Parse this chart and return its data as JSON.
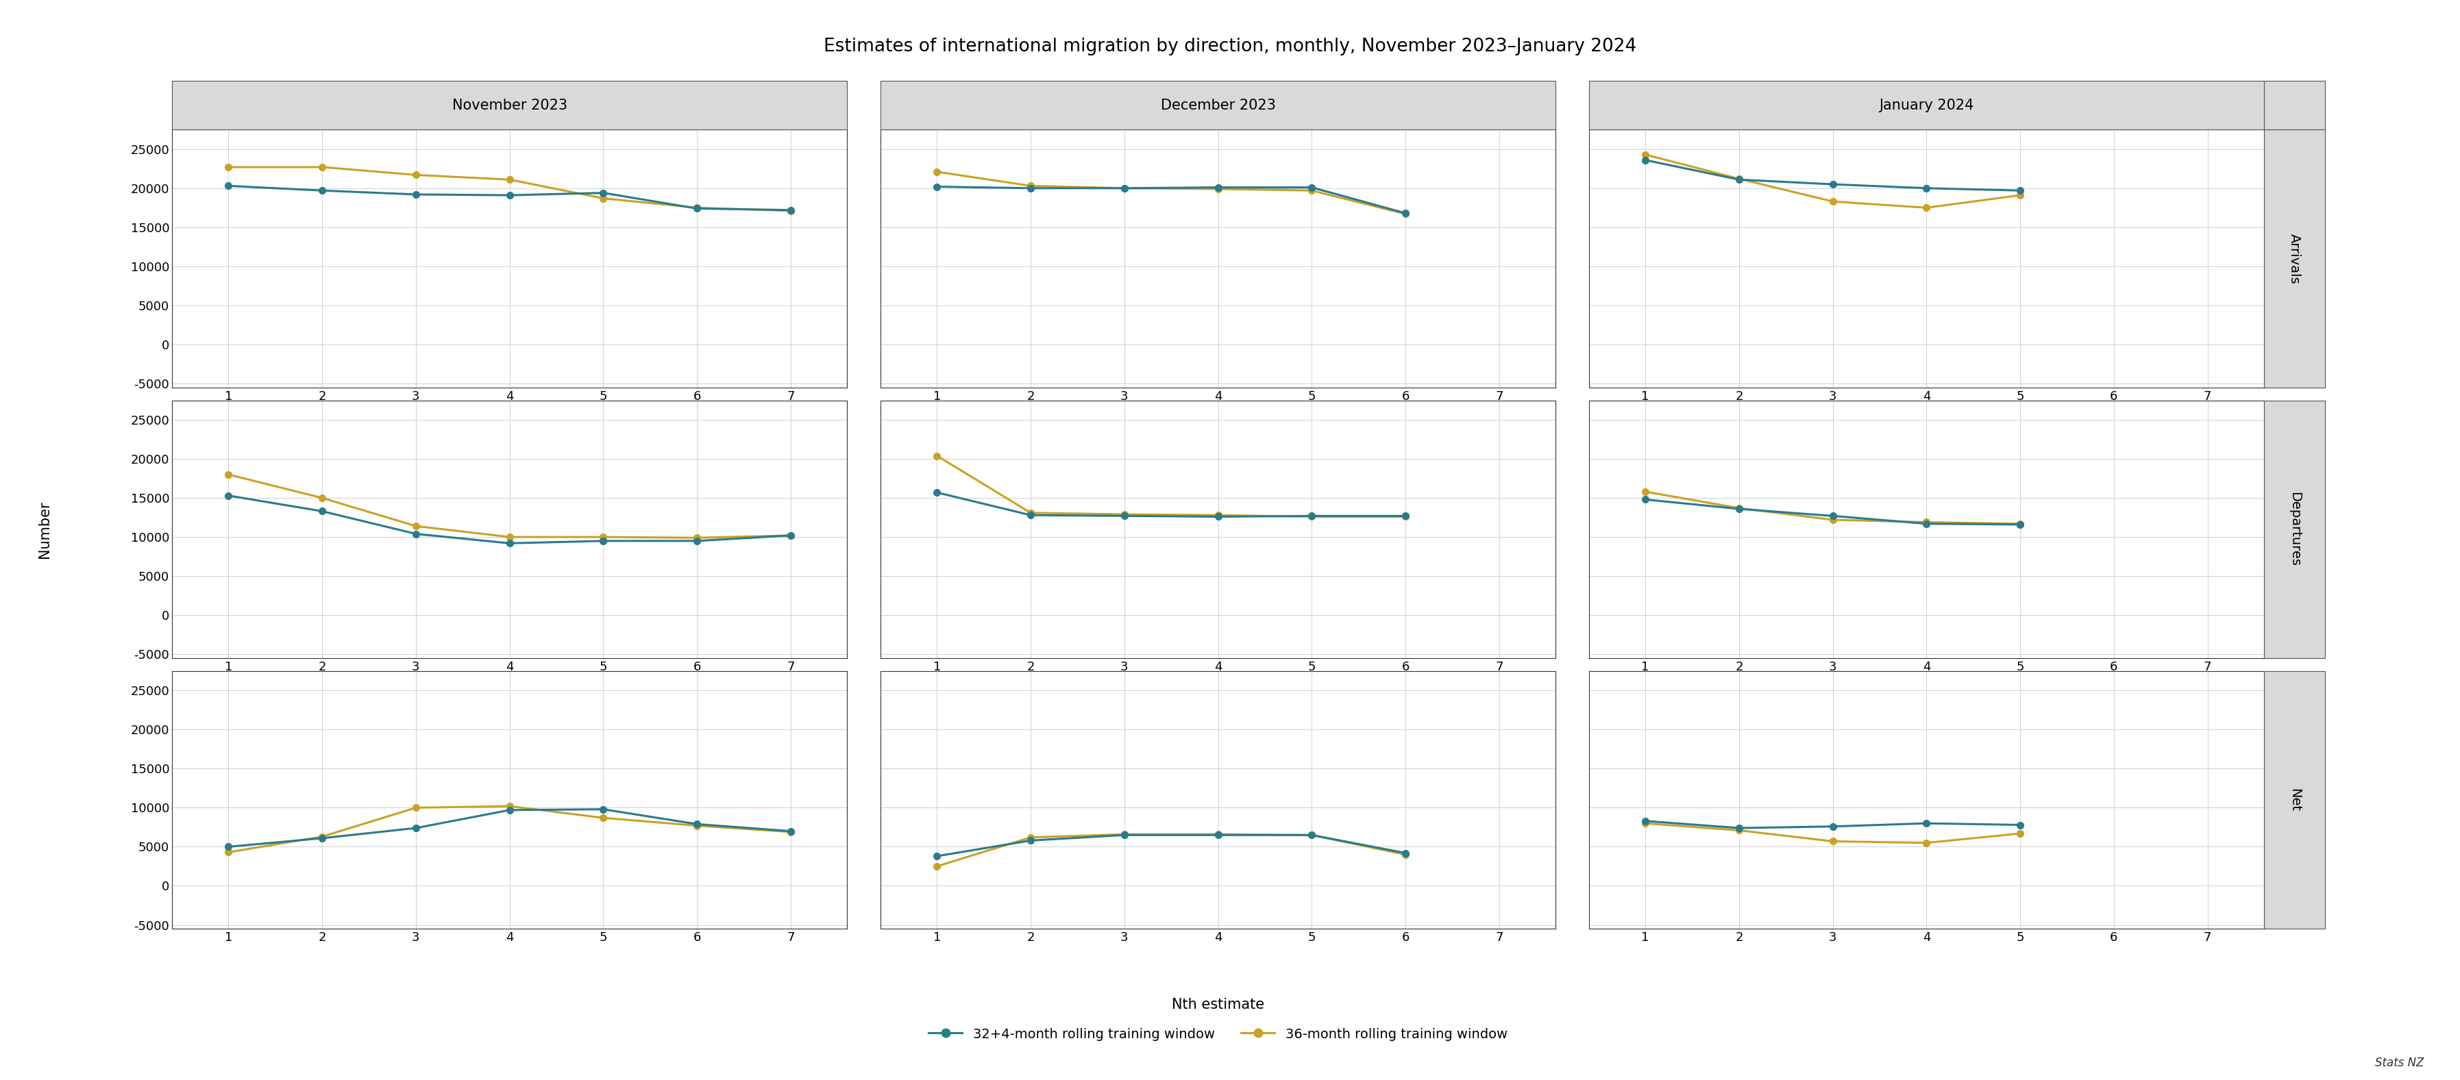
{
  "title": "Estimates of international migration by direction, monthly, November 2023–January 2024",
  "xlabel": "Nth estimate",
  "ylabel": "Number",
  "col_labels": [
    "November 2023",
    "December 2023",
    "January 2024"
  ],
  "row_labels": [
    "Arrivals",
    "Departures",
    "Net"
  ],
  "legend_labels": [
    "32+4-month rolling training window",
    "36-month rolling training window"
  ],
  "line_colors": [
    "#2a7b8c",
    "#c9a227"
  ],
  "ylim": [
    -5500,
    27500
  ],
  "yticks": [
    -5000,
    0,
    5000,
    10000,
    15000,
    20000,
    25000
  ],
  "xticks": [
    1,
    2,
    3,
    4,
    5,
    6,
    7
  ],
  "xlim": [
    0.4,
    7.6
  ],
  "stats_nz": "Stats NZ",
  "background_color": "#ffffff",
  "plot_background": "#ffffff",
  "strip_background": "#d9d9d9",
  "grid_color": "#d0d0d0",
  "series": {
    "arrivals_nov": {
      "teal": [
        20300,
        19700,
        19200,
        19100,
        19400,
        17400,
        17200
      ],
      "gold": [
        22700,
        22700,
        21700,
        21100,
        18700,
        17500,
        17100
      ]
    },
    "arrivals_dec": {
      "teal": [
        20200,
        20000,
        20000,
        20100,
        20100,
        16800
      ],
      "gold": [
        22100,
        20300,
        20000,
        19900,
        19700,
        16700
      ]
    },
    "arrivals_jan": {
      "teal": [
        23600,
        21100,
        20500,
        20000,
        19700
      ],
      "gold": [
        24300,
        21200,
        18300,
        17500,
        19100
      ]
    },
    "departures_nov": {
      "teal": [
        15300,
        13300,
        10400,
        9200,
        9500,
        9500,
        10200
      ],
      "gold": [
        18000,
        15000,
        11400,
        10000,
        10000,
        9900,
        10200
      ]
    },
    "departures_dec": {
      "teal": [
        15700,
        12800,
        12700,
        12600,
        12700,
        12700
      ],
      "gold": [
        20400,
        13100,
        12900,
        12800,
        12600,
        12600
      ]
    },
    "departures_jan": {
      "teal": [
        14800,
        13600,
        12700,
        11700,
        11600
      ],
      "gold": [
        15800,
        13700,
        12200,
        11900,
        11700
      ]
    },
    "net_nov": {
      "teal": [
        5000,
        6100,
        7400,
        9700,
        9800,
        7900,
        7000
      ],
      "gold": [
        4300,
        6300,
        10000,
        10200,
        8700,
        7700,
        6900
      ]
    },
    "net_dec": {
      "teal": [
        3800,
        5800,
        6500,
        6500,
        6500,
        4200
      ],
      "gold": [
        2500,
        6200,
        6600,
        6600,
        6500,
        4000
      ]
    },
    "net_jan": {
      "teal": [
        8300,
        7400,
        7600,
        8000,
        7800
      ],
      "gold": [
        8000,
        7100,
        5700,
        5500,
        6700
      ]
    }
  }
}
